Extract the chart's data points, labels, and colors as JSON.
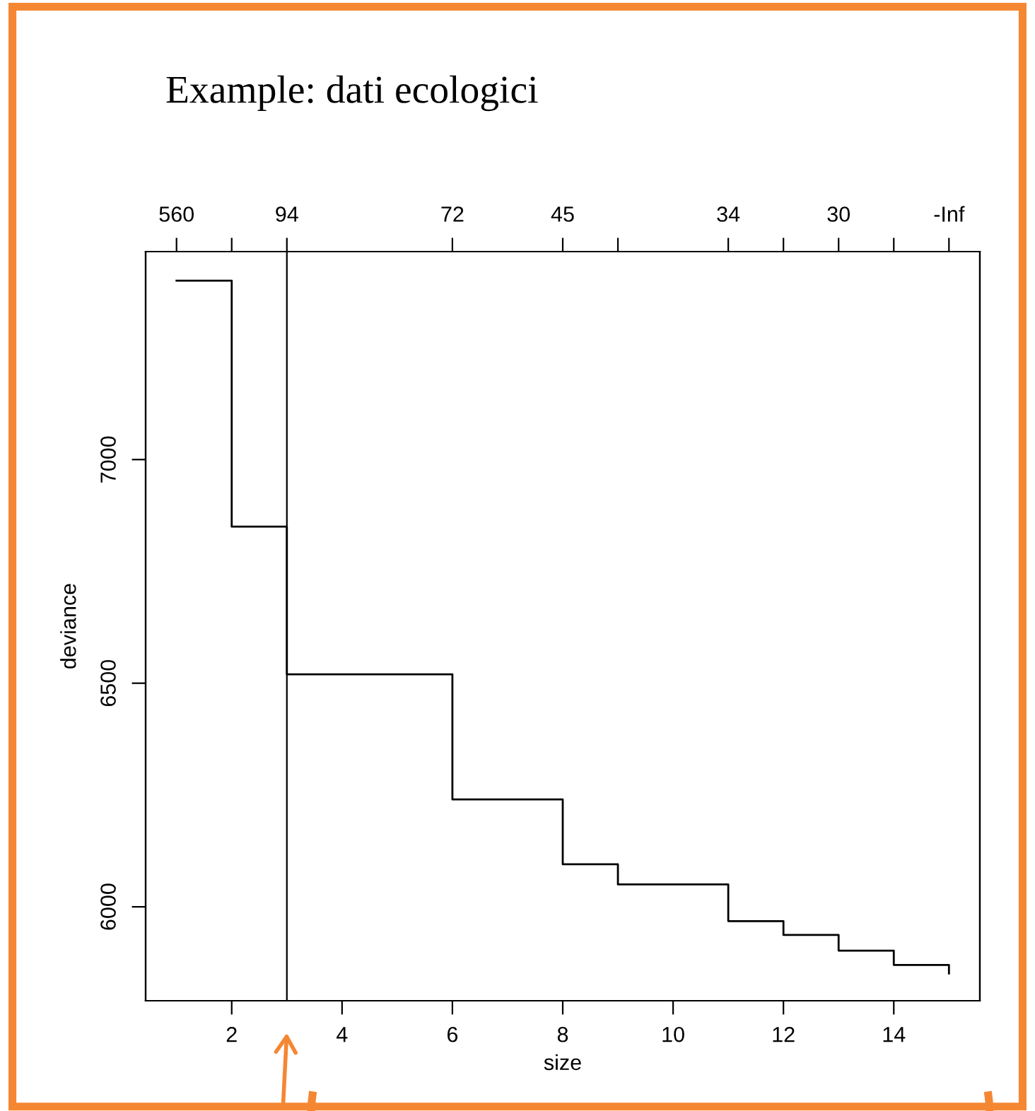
{
  "chart_data": {
    "type": "step",
    "title": "Example: dati ecologici",
    "xlabel": "size",
    "ylabel": "deviance",
    "x": [
      1,
      2,
      3,
      6,
      8,
      9,
      11,
      12,
      13,
      14,
      15
    ],
    "series": [
      {
        "color": "#000000",
        "values": [
          7400,
          6850,
          6520,
          6240,
          6095,
          6050,
          5968,
          5937,
          5902,
          5870,
          5851
        ]
      }
    ],
    "xlim": [
      0.44,
      15.56
    ],
    "xticks": [
      2,
      4,
      6,
      8,
      10,
      12,
      14
    ],
    "ylim": [
      5790,
      7465
    ],
    "yticks": [
      6000,
      6500,
      7000
    ],
    "annotations": [
      {
        "text": "560",
        "x": 1
      },
      {
        "text": "94",
        "x": 3
      },
      {
        "text": "72",
        "x": 6
      },
      {
        "text": "45",
        "x": 8
      },
      {
        "text": "34",
        "x": 11
      },
      {
        "text": "30",
        "x": 13
      },
      {
        "text": "-Inf",
        "x": 15
      }
    ],
    "ref_lines": [
      {
        "axis": "x",
        "value": 3,
        "color": "#000000"
      }
    ],
    "grid": false,
    "legend": false
  }
}
